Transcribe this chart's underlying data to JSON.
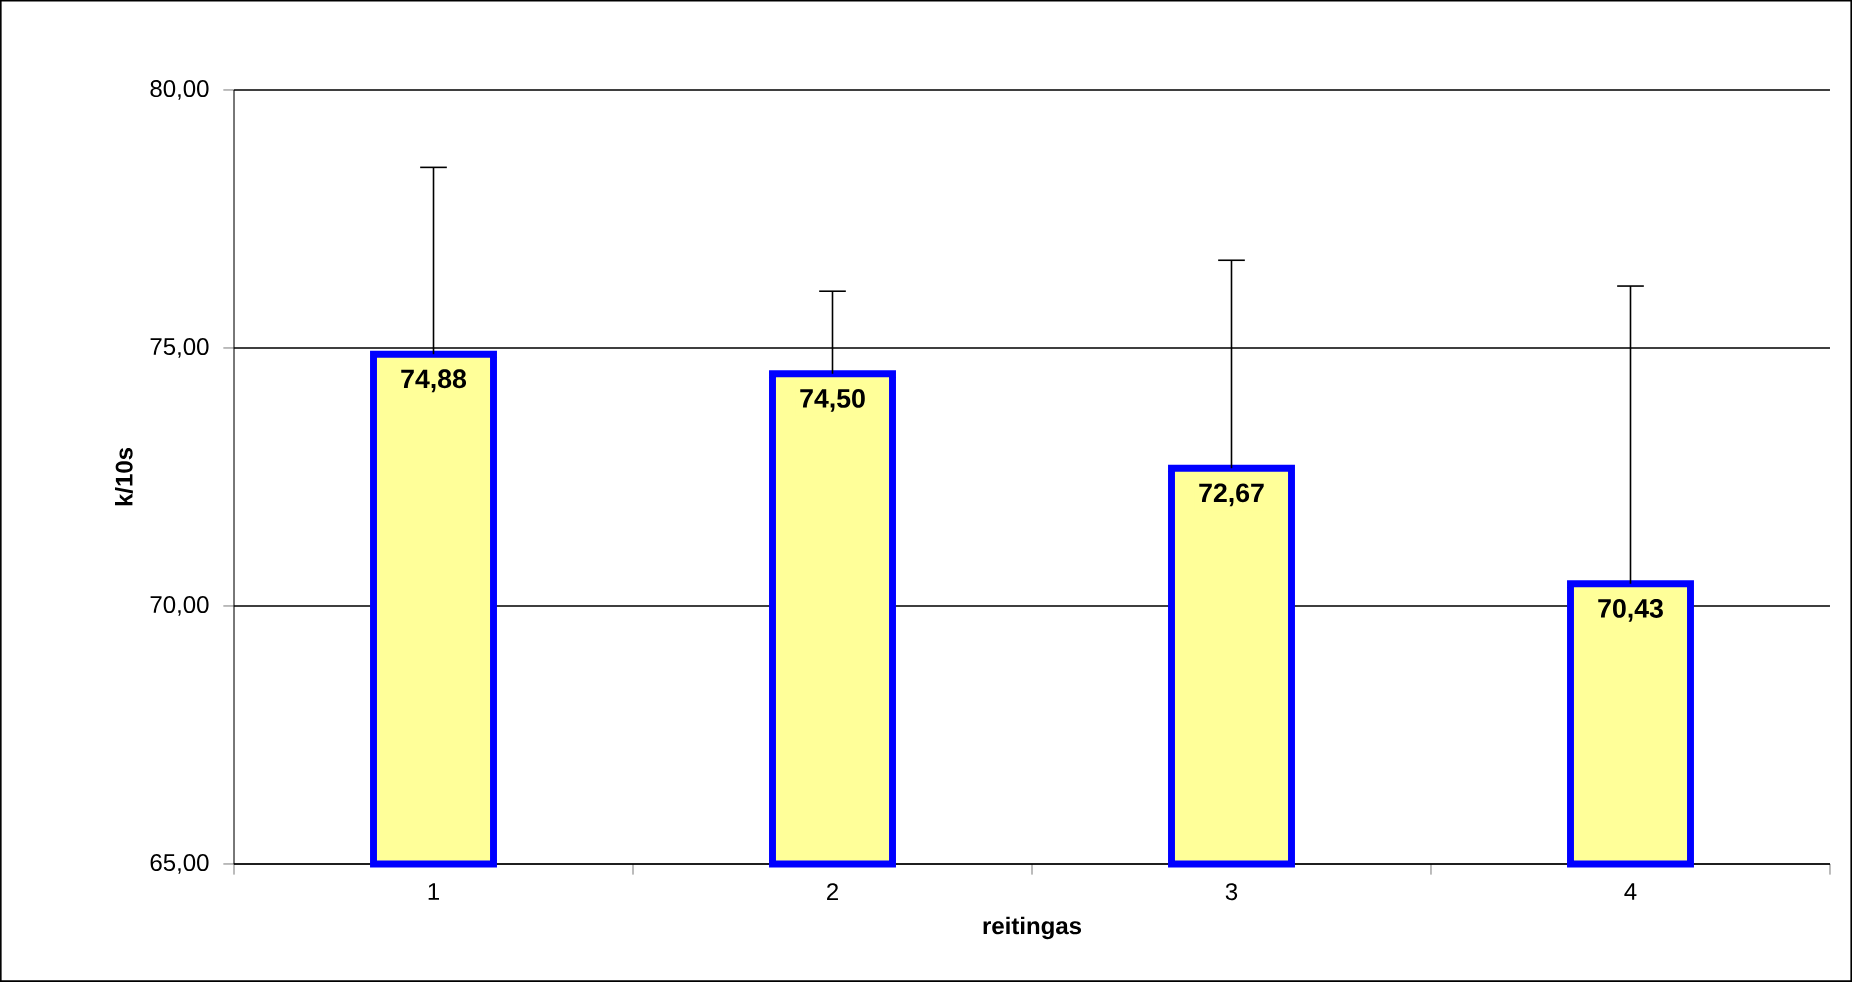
{
  "chart_data": {
    "type": "bar",
    "xlabel": "reitingas",
    "ylabel": "k/10s",
    "categories": [
      "1",
      "2",
      "3",
      "4"
    ],
    "values": [
      74.88,
      74.5,
      72.67,
      70.43
    ],
    "value_labels": [
      "74,88",
      "74,50",
      "72,67",
      "70,43"
    ],
    "errors": [
      [
        74.88,
        78.5
      ],
      [
        74.5,
        76.1
      ],
      [
        72.67,
        76.7
      ],
      [
        70.43,
        76.2
      ]
    ],
    "color": "#ffff99",
    "ylim": [
      65,
      80
    ],
    "yticks": [
      {
        "value": 65,
        "label": "65,00"
      },
      {
        "value": 70,
        "label": "70,00"
      },
      {
        "value": 75,
        "label": "75,00"
      },
      {
        "value": 80,
        "label": "80,00"
      }
    ],
    "grid": "y"
  }
}
